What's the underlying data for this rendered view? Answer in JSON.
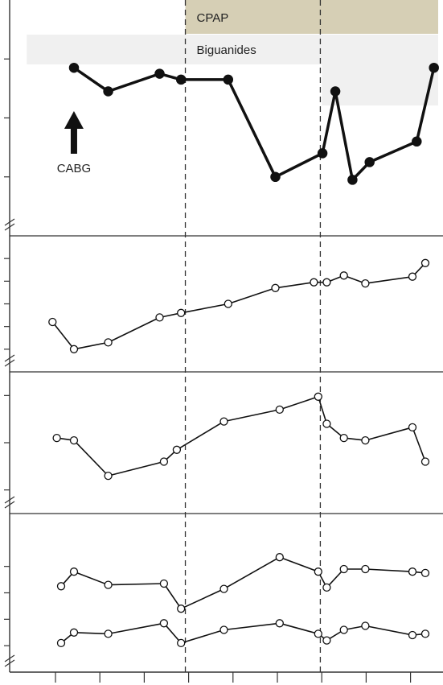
{
  "chart_data": {
    "type": "line",
    "title": "",
    "xlabel": "",
    "x_axis": {
      "xlim": [
        0,
        100
      ],
      "tick_count": 10,
      "grid": false
    },
    "bands": [
      {
        "label": "CPAP",
        "color": "#d6cfb5",
        "start": 41,
        "end": 100
      },
      {
        "label": "Biguanides",
        "color": "#f0f0f0",
        "start": 4,
        "end": 100
      }
    ],
    "vertical_markers": [
      41,
      72.5
    ],
    "annotations": [
      {
        "text": "CABG",
        "x": 15,
        "arrow": "up"
      }
    ],
    "panels": [
      {
        "ylim": [
          0,
          4
        ],
        "y_ticks": [
          1,
          2,
          3
        ],
        "style": "filled",
        "series": [
          {
            "x": [
              15,
              23,
              35,
              40,
              51,
              62,
              73,
              76,
              80,
              84,
              95,
              99
            ],
            "y": [
              2.85,
              2.45,
              2.75,
              2.65,
              2.65,
              1.0,
              1.4,
              2.45,
              0.95,
              1.25,
              1.6,
              2.85
            ]
          }
        ]
      },
      {
        "ylim": [
          0,
          6
        ],
        "y_ticks": [
          1,
          2,
          3,
          4,
          5
        ],
        "style": "open",
        "series": [
          {
            "x": [
              10,
              15,
              23,
              35,
              40,
              51,
              62,
              71,
              74,
              78,
              83,
              94,
              97
            ],
            "y": [
              2.2,
              1.0,
              1.3,
              2.4,
              2.6,
              3.0,
              3.7,
              3.95,
              3.95,
              4.25,
              3.9,
              4.2,
              4.8
            ]
          }
        ]
      },
      {
        "ylim": [
          0,
          6
        ],
        "y_ticks": [
          1,
          3,
          5
        ],
        "style": "open",
        "series": [
          {
            "x": [
              11,
              15,
              23,
              36,
              39,
              50,
              63,
              72,
              74,
              78,
              83,
              94,
              97
            ],
            "y": [
              3.2,
              3.1,
              1.6,
              2.2,
              2.7,
              3.9,
              4.4,
              4.95,
              3.8,
              3.2,
              3.1,
              3.65,
              2.2
            ]
          }
        ]
      },
      {
        "ylim": [
          0,
          6
        ],
        "y_ticks": [
          1,
          2,
          3,
          4
        ],
        "style": "open",
        "series": [
          {
            "x": [
              12,
              15,
              23,
              36,
              40,
              50,
              63,
              72,
              74,
              78,
              83,
              94,
              97
            ],
            "y": [
              3.25,
              3.8,
              3.3,
              3.35,
              2.4,
              3.15,
              4.35,
              3.8,
              3.2,
              3.9,
              3.9,
              3.8,
              3.75
            ]
          },
          {
            "x": [
              12,
              15,
              23,
              36,
              40,
              50,
              63,
              72,
              74,
              78,
              83,
              94,
              97
            ],
            "y": [
              1.1,
              1.5,
              1.45,
              1.85,
              1.1,
              1.6,
              1.85,
              1.45,
              1.2,
              1.6,
              1.75,
              1.4,
              1.45
            ]
          }
        ]
      }
    ]
  },
  "colors": {
    "line": "#111111",
    "axis": "#333333",
    "marker_fill_open": "#ffffff",
    "marker_fill_filled": "#111111",
    "dashed": "#333333",
    "text": "#222222"
  }
}
